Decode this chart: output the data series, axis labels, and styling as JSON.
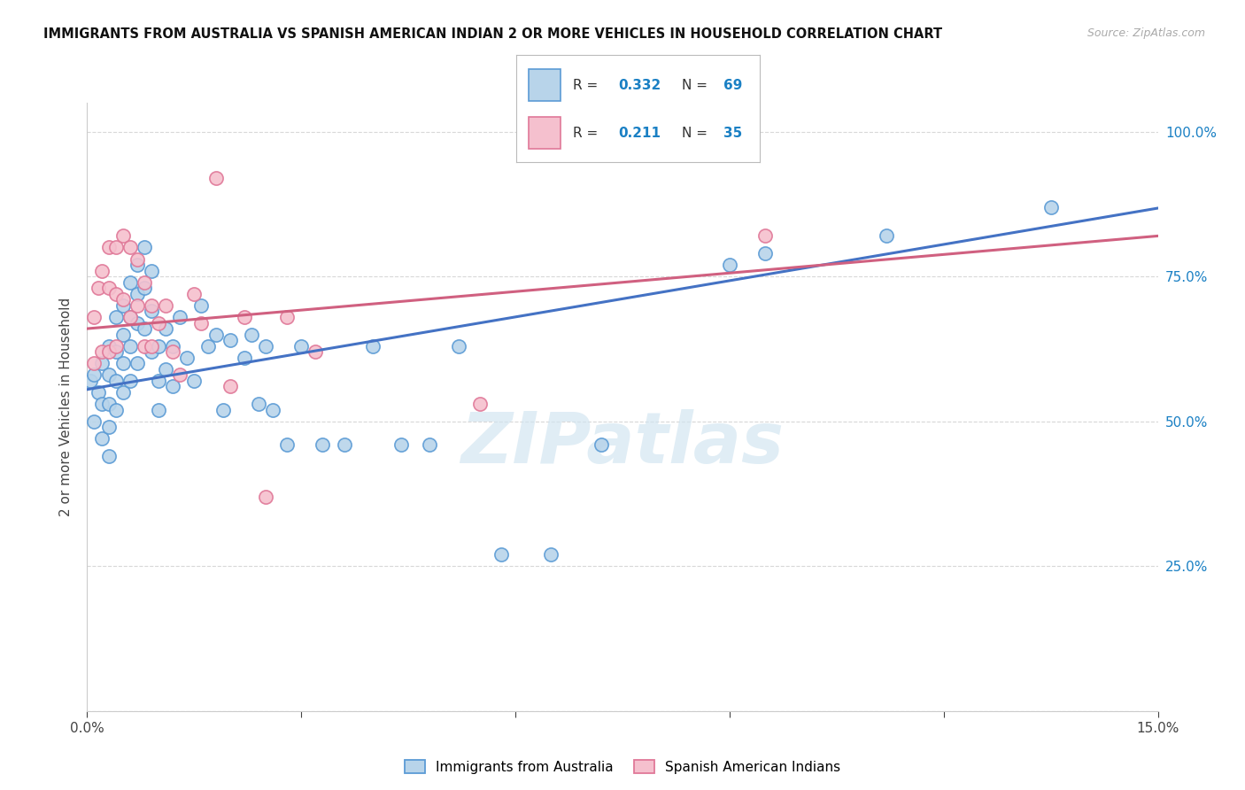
{
  "title": "IMMIGRANTS FROM AUSTRALIA VS SPANISH AMERICAN INDIAN 2 OR MORE VEHICLES IN HOUSEHOLD CORRELATION CHART",
  "source": "Source: ZipAtlas.com",
  "ylabel": "2 or more Vehicles in Household",
  "xlim": [
    0.0,
    0.15
  ],
  "ylim": [
    0.0,
    1.05
  ],
  "r_australia": 0.332,
  "n_australia": 69,
  "r_spanish": 0.211,
  "n_spanish": 35,
  "blue_fill": "#b8d4ea",
  "blue_edge": "#5b9bd5",
  "pink_fill": "#f5c0ce",
  "pink_edge": "#e07898",
  "line_blue": "#4472C4",
  "line_pink": "#d06080",
  "grid_color": "#d8d8d8",
  "aus_x": [
    0.0005,
    0.001,
    0.001,
    0.0015,
    0.002,
    0.002,
    0.002,
    0.003,
    0.003,
    0.003,
    0.003,
    0.003,
    0.004,
    0.004,
    0.004,
    0.004,
    0.005,
    0.005,
    0.005,
    0.005,
    0.006,
    0.006,
    0.006,
    0.006,
    0.007,
    0.007,
    0.007,
    0.007,
    0.008,
    0.008,
    0.008,
    0.009,
    0.009,
    0.009,
    0.01,
    0.01,
    0.01,
    0.011,
    0.011,
    0.012,
    0.012,
    0.013,
    0.014,
    0.015,
    0.016,
    0.017,
    0.018,
    0.019,
    0.02,
    0.022,
    0.023,
    0.024,
    0.025,
    0.026,
    0.028,
    0.03,
    0.033,
    0.036,
    0.04,
    0.044,
    0.048,
    0.052,
    0.058,
    0.065,
    0.072,
    0.09,
    0.095,
    0.112,
    0.135
  ],
  "aus_y": [
    0.57,
    0.5,
    0.58,
    0.55,
    0.6,
    0.53,
    0.47,
    0.63,
    0.58,
    0.53,
    0.49,
    0.44,
    0.68,
    0.62,
    0.57,
    0.52,
    0.7,
    0.65,
    0.6,
    0.55,
    0.74,
    0.68,
    0.63,
    0.57,
    0.77,
    0.72,
    0.67,
    0.6,
    0.8,
    0.73,
    0.66,
    0.76,
    0.69,
    0.62,
    0.63,
    0.57,
    0.52,
    0.66,
    0.59,
    0.63,
    0.56,
    0.68,
    0.61,
    0.57,
    0.7,
    0.63,
    0.65,
    0.52,
    0.64,
    0.61,
    0.65,
    0.53,
    0.63,
    0.52,
    0.46,
    0.63,
    0.46,
    0.46,
    0.63,
    0.46,
    0.46,
    0.63,
    0.27,
    0.27,
    0.46,
    0.77,
    0.79,
    0.82,
    0.87
  ],
  "spa_x": [
    0.001,
    0.001,
    0.0015,
    0.002,
    0.002,
    0.003,
    0.003,
    0.003,
    0.004,
    0.004,
    0.004,
    0.005,
    0.005,
    0.006,
    0.006,
    0.007,
    0.007,
    0.008,
    0.008,
    0.009,
    0.009,
    0.01,
    0.011,
    0.012,
    0.013,
    0.015,
    0.016,
    0.018,
    0.02,
    0.022,
    0.025,
    0.028,
    0.032,
    0.055,
    0.095
  ],
  "spa_y": [
    0.68,
    0.6,
    0.73,
    0.76,
    0.62,
    0.8,
    0.73,
    0.62,
    0.8,
    0.72,
    0.63,
    0.82,
    0.71,
    0.8,
    0.68,
    0.78,
    0.7,
    0.74,
    0.63,
    0.7,
    0.63,
    0.67,
    0.7,
    0.62,
    0.58,
    0.72,
    0.67,
    0.92,
    0.56,
    0.68,
    0.37,
    0.68,
    0.62,
    0.53,
    0.82
  ],
  "line_blue_y0": 0.555,
  "line_blue_y1": 0.868,
  "line_pink_y0": 0.66,
  "line_pink_y1": 0.82
}
